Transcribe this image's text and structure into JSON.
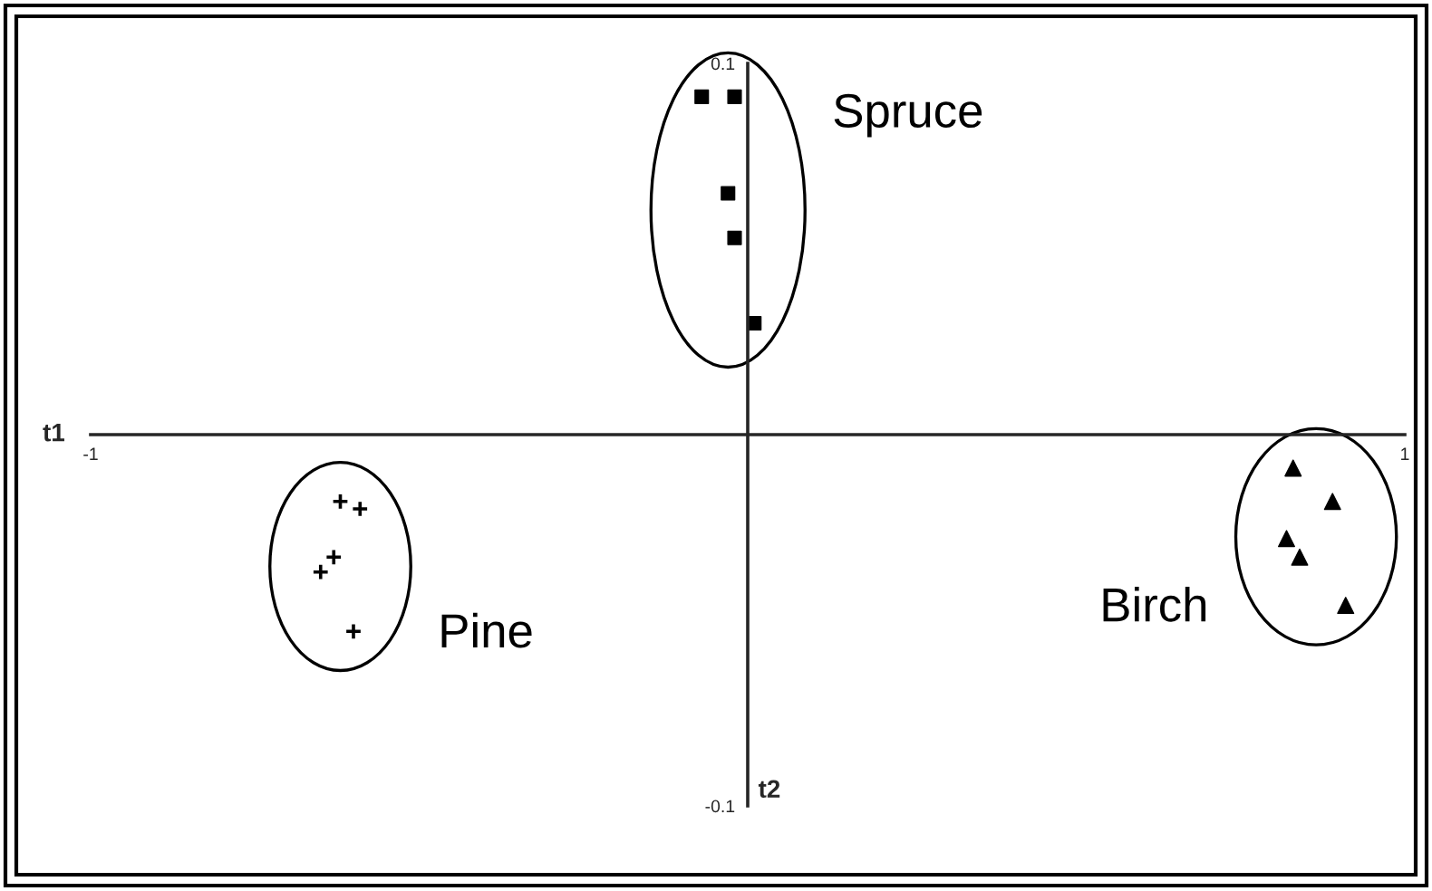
{
  "chart_data": {
    "type": "scatter",
    "xlabel": "t1",
    "ylabel": "t2",
    "xlim": [
      -1,
      1
    ],
    "ylim": [
      -0.1,
      0.1
    ],
    "xticks": [
      -1,
      1
    ],
    "yticks": [
      -0.1,
      0.1
    ],
    "series": [
      {
        "name": "Spruce",
        "color": "#000000",
        "marker": "square",
        "x": [
          -0.07,
          -0.02,
          -0.03,
          -0.02,
          0.01
        ],
        "values": [
          0.091,
          0.091,
          0.065,
          0.053,
          0.03
        ]
      },
      {
        "name": "Pine",
        "color": "#000000",
        "marker": "cross",
        "x": [
          -0.62,
          -0.59,
          -0.63,
          -0.65,
          -0.6
        ],
        "values": [
          -0.018,
          -0.02,
          -0.033,
          -0.037,
          -0.053
        ]
      },
      {
        "name": "Birch",
        "color": "#000000",
        "marker": "triangle",
        "x": [
          0.83,
          0.89,
          0.82,
          0.84,
          0.91
        ],
        "values": [
          -0.009,
          -0.018,
          -0.028,
          -0.033,
          -0.046
        ]
      }
    ]
  }
}
